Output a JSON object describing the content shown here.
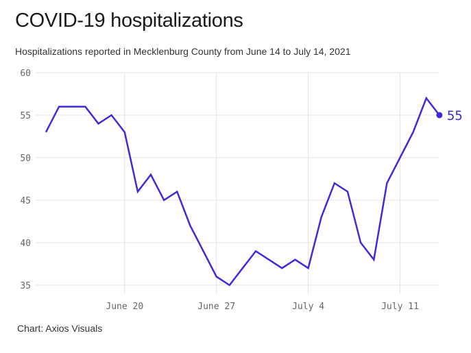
{
  "header": {
    "title": "COVID-19 hospitalizations",
    "subtitle": "Hospitalizations reported in Mecklenburg County from June 14 to July 14, 2021"
  },
  "footer": {
    "source": "Chart: Axios Visuals"
  },
  "colors": {
    "line": "#3d2bd9",
    "grid": "#e3e3e3",
    "tick_text": "#666666"
  },
  "chart_data": {
    "type": "line",
    "title": "COVID-19 hospitalizations",
    "subtitle": "Hospitalizations reported in Mecklenburg County from June 14 to July 14, 2021",
    "xlabel": "",
    "ylabel": "",
    "ylim": [
      35,
      60
    ],
    "yticks": [
      60,
      55,
      50,
      45,
      40,
      35
    ],
    "xticks": [
      {
        "index": 6,
        "label": "June 20"
      },
      {
        "index": 13,
        "label": "June 27"
      },
      {
        "index": 20,
        "label": "July 4"
      },
      {
        "index": 27,
        "label": "July 11"
      }
    ],
    "grid": true,
    "legend": "none",
    "x": [
      "Jun 14",
      "Jun 15",
      "Jun 16",
      "Jun 17",
      "Jun 18",
      "Jun 19",
      "Jun 20",
      "Jun 21",
      "Jun 22",
      "Jun 23",
      "Jun 24",
      "Jun 25",
      "Jun 26",
      "Jun 27",
      "Jun 28",
      "Jun 29",
      "Jun 30",
      "Jul 1",
      "Jul 2",
      "Jul 3",
      "Jul 4",
      "Jul 5",
      "Jul 6",
      "Jul 7",
      "Jul 8",
      "Jul 9",
      "Jul 10",
      "Jul 11",
      "Jul 12",
      "Jul 13",
      "Jul 14"
    ],
    "series": [
      {
        "name": "Hospitalizations",
        "values": [
          53,
          56,
          56,
          56,
          54,
          55,
          53,
          46,
          48,
          45,
          46,
          42,
          39,
          36,
          35,
          37,
          39,
          38,
          37,
          38,
          37,
          43,
          47,
          46,
          40,
          38,
          47,
          50,
          53,
          57,
          55
        ]
      }
    ],
    "end_label": "55"
  }
}
